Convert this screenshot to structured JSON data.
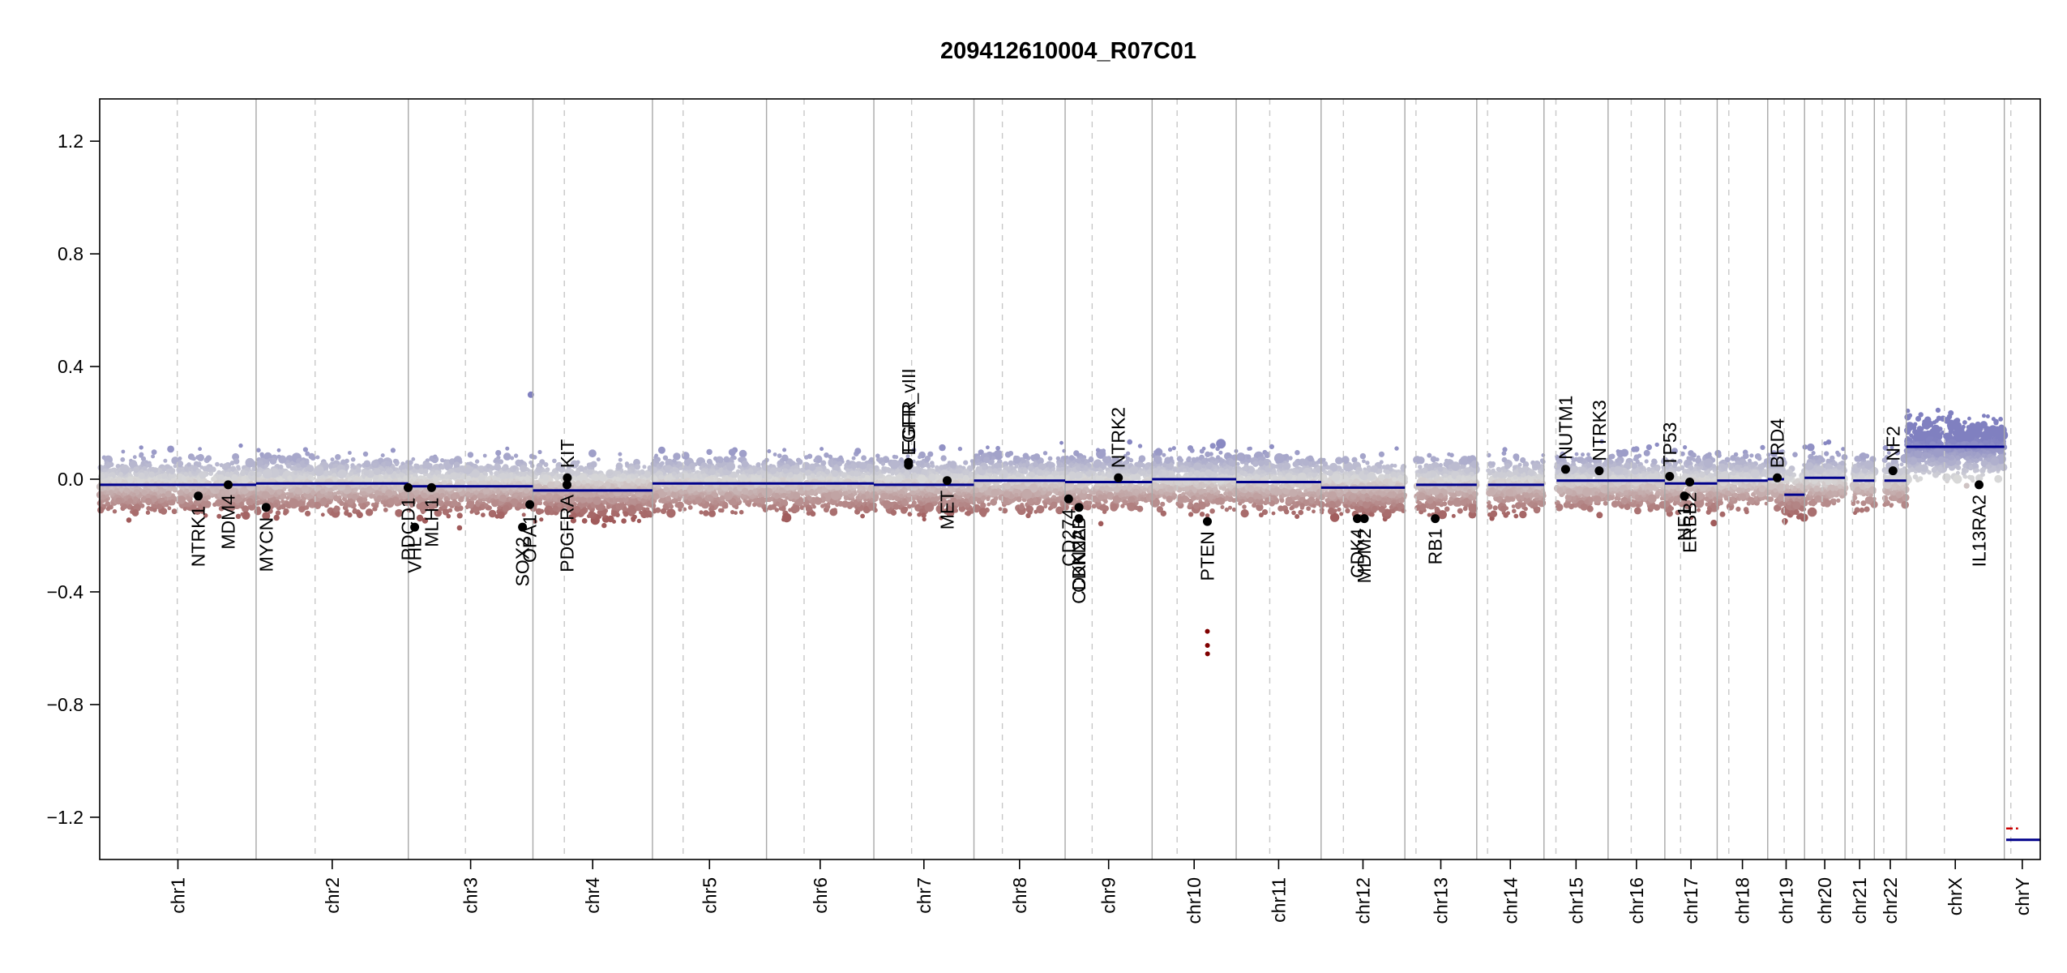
{
  "chart_data": {
    "type": "scatter",
    "title": "209412610004_R07C01",
    "ylim": [
      -1.35,
      1.35
    ],
    "y_ticks": [
      1.2,
      0.8,
      0.4,
      0.0,
      -0.4,
      -0.8,
      -1.2
    ],
    "y_tick_labels": [
      "1.2",
      "0.8",
      "0.4",
      "0.0",
      "−0.4",
      "−0.8",
      "−1.2"
    ],
    "chromosomes": [
      {
        "name": "chr1",
        "size": 248.9,
        "centromere": 123.4,
        "segments": [
          {
            "from": 0,
            "to": 248.9,
            "value": -0.02
          }
        ],
        "spread": 0.12
      },
      {
        "name": "chr2",
        "size": 242.2,
        "centromere": 93.9,
        "segments": [
          {
            "from": 0,
            "to": 242.2,
            "value": -0.015
          }
        ],
        "spread": 0.12
      },
      {
        "name": "chr3",
        "size": 198.3,
        "centromere": 90.9,
        "segments": [
          {
            "from": 0,
            "to": 198.3,
            "value": -0.025
          }
        ],
        "spread": 0.12
      },
      {
        "name": "chr4",
        "size": 190.2,
        "centromere": 50.0,
        "segments": [
          {
            "from": 0,
            "to": 190.2,
            "value": -0.04
          }
        ],
        "spread": 0.12
      },
      {
        "name": "chr5",
        "size": 181.5,
        "centromere": 48.8,
        "segments": [
          {
            "from": 0,
            "to": 181.5,
            "value": -0.015
          }
        ],
        "spread": 0.12
      },
      {
        "name": "chr6",
        "size": 170.8,
        "centromere": 59.8,
        "segments": [
          {
            "from": 0,
            "to": 170.8,
            "value": -0.015
          }
        ],
        "spread": 0.12
      },
      {
        "name": "chr7",
        "size": 159.3,
        "centromere": 60.1,
        "segments": [
          {
            "from": 0,
            "to": 159.3,
            "value": -0.02
          }
        ],
        "spread": 0.12
      },
      {
        "name": "chr8",
        "size": 145.1,
        "centromere": 45.2,
        "segments": [
          {
            "from": 0,
            "to": 145.1,
            "value": -0.005
          }
        ],
        "spread": 0.12
      },
      {
        "name": "chr9",
        "size": 138.4,
        "centromere": 43.0,
        "segments": [
          {
            "from": 0,
            "to": 138.4,
            "value": -0.01
          }
        ],
        "spread": 0.12
      },
      {
        "name": "chr10",
        "size": 133.8,
        "centromere": 39.8,
        "segments": [
          {
            "from": 0,
            "to": 133.8,
            "value": 0.0
          }
        ],
        "spread": 0.12
      },
      {
        "name": "chr11",
        "size": 135.1,
        "centromere": 53.4,
        "segments": [
          {
            "from": 0,
            "to": 135.1,
            "value": -0.01
          }
        ],
        "spread": 0.12
      },
      {
        "name": "chr12",
        "size": 133.3,
        "centromere": 35.5,
        "segments": [
          {
            "from": 0,
            "to": 133.3,
            "value": -0.03
          }
        ],
        "spread": 0.12
      },
      {
        "name": "chr13",
        "size": 114.4,
        "centromere": 17.7,
        "segments": [
          {
            "from": 18.0,
            "to": 114.4,
            "value": -0.02
          }
        ],
        "spread": 0.12
      },
      {
        "name": "chr14",
        "size": 107.0,
        "centromere": 17.2,
        "segments": [
          {
            "from": 18.0,
            "to": 107.0,
            "value": -0.02
          }
        ],
        "spread": 0.12
      },
      {
        "name": "chr15",
        "size": 102.0,
        "centromere": 19.0,
        "segments": [
          {
            "from": 20.0,
            "to": 102.0,
            "value": -0.005
          }
        ],
        "spread": 0.12
      },
      {
        "name": "chr16",
        "size": 90.3,
        "centromere": 36.8,
        "segments": [
          {
            "from": 0,
            "to": 90.3,
            "value": -0.005
          }
        ],
        "spread": 0.12
      },
      {
        "name": "chr17",
        "size": 83.3,
        "centromere": 25.1,
        "segments": [
          {
            "from": 0,
            "to": 83.3,
            "value": -0.015
          }
        ],
        "spread": 0.12
      },
      {
        "name": "chr18",
        "size": 80.4,
        "centromere": 18.5,
        "segments": [
          {
            "from": 0,
            "to": 80.4,
            "value": -0.005
          }
        ],
        "spread": 0.12
      },
      {
        "name": "chr19",
        "size": 58.6,
        "centromere": 26.2,
        "segments": [
          {
            "from": 0,
            "to": 26.0,
            "value": 0.0
          },
          {
            "from": 26.5,
            "to": 58.6,
            "value": -0.055
          }
        ],
        "spread": 0.12
      },
      {
        "name": "chr20",
        "size": 64.4,
        "centromere": 28.1,
        "segments": [
          {
            "from": 0,
            "to": 64.4,
            "value": 0.005
          }
        ],
        "spread": 0.12
      },
      {
        "name": "chr21",
        "size": 46.7,
        "centromere": 12.0,
        "segments": [
          {
            "from": 13.0,
            "to": 46.7,
            "value": -0.005
          }
        ],
        "spread": 0.12
      },
      {
        "name": "chr22",
        "size": 50.8,
        "centromere": 15.0,
        "segments": [
          {
            "from": 16.0,
            "to": 50.8,
            "value": -0.005
          }
        ],
        "spread": 0.12
      },
      {
        "name": "chrX",
        "size": 156.0,
        "centromere": 60.6,
        "segments": [
          {
            "from": 0,
            "to": 156.0,
            "value": 0.115
          }
        ],
        "spread": 0.13
      },
      {
        "name": "chrY",
        "size": 57.2,
        "centromere": 10.4,
        "segments": [
          {
            "from": 3.0,
            "to": 57.2,
            "value": -1.28
          }
        ],
        "spread": 0.0
      }
    ],
    "genes": [
      {
        "name": "NTRK1",
        "chr": "chr1",
        "pos": 156.8,
        "value": -0.06,
        "label": "below"
      },
      {
        "name": "MDM4",
        "chr": "chr1",
        "pos": 204.5,
        "value": -0.02,
        "label": "below"
      },
      {
        "name": "MYCN",
        "chr": "chr2",
        "pos": 15.9,
        "value": -0.1,
        "label": "below"
      },
      {
        "name": "PDCD1",
        "chr": "chr2",
        "pos": 241.9,
        "value": -0.03,
        "label": "below"
      },
      {
        "name": "VHL",
        "chr": "chr3",
        "pos": 10.1,
        "value": -0.17,
        "label": "below"
      },
      {
        "name": "MLH1",
        "chr": "chr3",
        "pos": 37.0,
        "value": -0.03,
        "label": "below"
      },
      {
        "name": "SOX2",
        "chr": "chr3",
        "pos": 181.7,
        "value": -0.17,
        "label": "below"
      },
      {
        "name": "OPA1",
        "chr": "chr3",
        "pos": 193.3,
        "value": -0.09,
        "label": "below"
      },
      {
        "name": "PDGFRA",
        "chr": "chr4",
        "pos": 54.2,
        "value": -0.02,
        "label": "below"
      },
      {
        "name": "KIT",
        "chr": "chr4",
        "pos": 54.7,
        "value": 0.005,
        "label": "above"
      },
      {
        "name": "EGFR",
        "chr": "chr7",
        "pos": 55.1,
        "value": 0.06,
        "label": "above"
      },
      {
        "name": "EGFR_vIII",
        "chr": "chr7",
        "pos": 55.2,
        "value": 0.05,
        "label": "above"
      },
      {
        "name": "MET",
        "chr": "chr7",
        "pos": 116.7,
        "value": -0.005,
        "label": "below"
      },
      {
        "name": "CD274",
        "chr": "chr9",
        "pos": 5.5,
        "value": -0.07,
        "label": "below"
      },
      {
        "name": "CDKN2B",
        "chr": "chr9",
        "pos": 22.0,
        "value": -0.1,
        "label": "below"
      },
      {
        "name": "CDKN2A",
        "chr": "chr9",
        "pos": 21.9,
        "value": -0.14,
        "label": "below"
      },
      {
        "name": "NTRK2",
        "chr": "chr9",
        "pos": 84.7,
        "value": 0.005,
        "label": "above"
      },
      {
        "name": "PTEN",
        "chr": "chr10",
        "pos": 87.9,
        "value": -0.15,
        "label": "below"
      },
      {
        "name": "CDK4",
        "chr": "chr12",
        "pos": 57.7,
        "value": -0.14,
        "label": "below"
      },
      {
        "name": "MDM2",
        "chr": "chr12",
        "pos": 68.8,
        "value": -0.14,
        "label": "below"
      },
      {
        "name": "RB1",
        "chr": "chr13",
        "pos": 48.3,
        "value": -0.14,
        "label": "below"
      },
      {
        "name": "NUTM1",
        "chr": "chr15",
        "pos": 34.3,
        "value": 0.035,
        "label": "above"
      },
      {
        "name": "NTRK3",
        "chr": "chr15",
        "pos": 87.9,
        "value": 0.03,
        "label": "above"
      },
      {
        "name": "TP53",
        "chr": "chr17",
        "pos": 7.6,
        "value": 0.01,
        "label": "above"
      },
      {
        "name": "NF1",
        "chr": "chr17",
        "pos": 31.2,
        "value": -0.06,
        "label": "below"
      },
      {
        "name": "ERBB2",
        "chr": "chr17",
        "pos": 39.7,
        "value": -0.01,
        "label": "below"
      },
      {
        "name": "BRD4",
        "chr": "chr19",
        "pos": 15.3,
        "value": 0.005,
        "label": "above"
      },
      {
        "name": "NF2",
        "chr": "chr22",
        "pos": 29.6,
        "value": 0.03,
        "label": "above"
      },
      {
        "name": "IL13RA2",
        "chr": "chrX",
        "pos": 115.8,
        "value": -0.02,
        "label": "below"
      }
    ],
    "outliers": [
      {
        "chr": "chr10",
        "pos": 88.0,
        "value": -0.54
      },
      {
        "chr": "chr10",
        "pos": 88.1,
        "value": -0.59
      },
      {
        "chr": "chr10",
        "pos": 88.2,
        "value": -0.62
      },
      {
        "chr": "chr3",
        "pos": 195.0,
        "value": 0.3
      }
    ],
    "colors": {
      "high": "#8080c0",
      "neutral": "#d8d8d8",
      "low": "#a05a5a",
      "segment": "#00008b",
      "outlier": "#800000",
      "gene_point": "#000000"
    },
    "y_marker_chrY": [
      -1.24,
      -1.28
    ],
    "grid": false
  }
}
